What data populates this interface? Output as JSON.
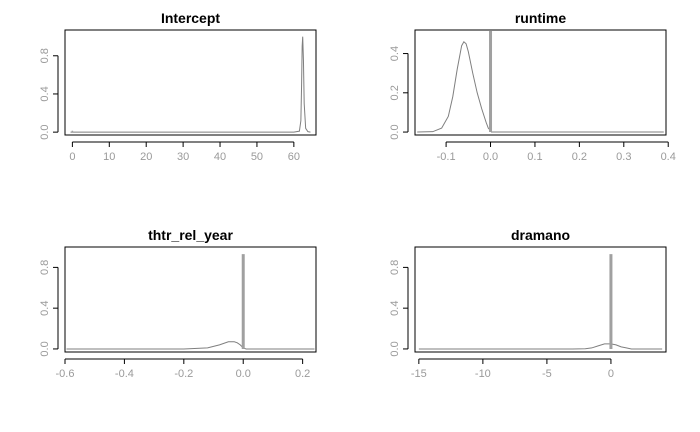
{
  "chart_data": [
    {
      "type": "line",
      "title": "Intercept",
      "xlim": [
        -2,
        66
      ],
      "ylim": [
        -0.03,
        1.07
      ],
      "xticks": [
        0,
        10,
        20,
        30,
        40,
        50,
        60
      ],
      "xtick_labels": [
        "0",
        "10",
        "20",
        "30",
        "40",
        "50",
        "60"
      ],
      "yticks": [
        0.0,
        0.4,
        0.8
      ],
      "ytick_labels": [
        "0.0",
        "0.4",
        "0.8"
      ],
      "spike": {
        "x": 0,
        "height": 0.015
      },
      "curve": {
        "x": [
          -0.5,
          60,
          61.5,
          61.9,
          62.1,
          62.25,
          62.4,
          62.6,
          62.8,
          63.2,
          63.8,
          64.5
        ],
        "y": [
          0,
          0,
          0.01,
          0.12,
          0.5,
          0.9,
          1.0,
          0.75,
          0.3,
          0.04,
          0.005,
          0
        ]
      }
    },
    {
      "type": "line",
      "title": "runtime",
      "xlim": [
        -0.17,
        0.395
      ],
      "ylim": [
        -0.015,
        0.52
      ],
      "xticks": [
        -0.1,
        0.0,
        0.1,
        0.2,
        0.3,
        0.4
      ],
      "xtick_labels": [
        "-0.1",
        "0.0",
        "0.1",
        "0.2",
        "0.3",
        "0.4"
      ],
      "yticks": [
        0.0,
        0.2,
        0.4
      ],
      "ytick_labels": [
        "0.0",
        "0.2",
        "0.4"
      ],
      "spike": {
        "x": 0,
        "height": 0.515
      },
      "curve": {
        "x": [
          -0.165,
          -0.13,
          -0.11,
          -0.095,
          -0.085,
          -0.075,
          -0.065,
          -0.06,
          -0.055,
          -0.05,
          -0.04,
          -0.03,
          -0.02,
          -0.01,
          -0.005,
          0,
          0.002,
          0.05,
          0.2,
          0.39
        ],
        "y": [
          0,
          0.002,
          0.02,
          0.08,
          0.18,
          0.32,
          0.44,
          0.46,
          0.45,
          0.41,
          0.3,
          0.2,
          0.12,
          0.05,
          0.02,
          0.008,
          0,
          0,
          0,
          0
        ]
      }
    },
    {
      "type": "line",
      "title": "thtr_rel_year",
      "xlim": [
        -0.6,
        0.245
      ],
      "ylim": [
        -0.03,
        1.0
      ],
      "xticks": [
        -0.6,
        -0.4,
        -0.2,
        0.0,
        0.2
      ],
      "xtick_labels": [
        "-0.6",
        "-0.4",
        "-0.2",
        "0.0",
        "0.2"
      ],
      "yticks": [
        0.0,
        0.4,
        0.8
      ],
      "ytick_labels": [
        "0.0",
        "0.4",
        "0.8"
      ],
      "spike": {
        "x": 0,
        "height": 0.93
      },
      "curve": {
        "x": [
          -0.595,
          -0.2,
          -0.12,
          -0.08,
          -0.05,
          -0.03,
          -0.02,
          -0.01,
          0,
          0.01,
          0.03,
          0.06,
          0.1,
          0.24
        ],
        "y": [
          0,
          0,
          0.01,
          0.04,
          0.07,
          0.07,
          0.06,
          0.04,
          0.01,
          0,
          0,
          0,
          0,
          0
        ]
      }
    },
    {
      "type": "line",
      "title": "dramano",
      "xlim": [
        -15.3,
        4.3
      ],
      "ylim": [
        -0.03,
        1.0
      ],
      "xticks": [
        -15,
        -10,
        -5,
        0
      ],
      "xtick_labels": [
        "-15",
        "-10",
        "-5",
        "0"
      ],
      "yticks": [
        0.0,
        0.4,
        0.8
      ],
      "ytick_labels": [
        "0.0",
        "0.4",
        "0.8"
      ],
      "spike": {
        "x": 0,
        "height": 0.93
      },
      "curve": {
        "x": [
          -15,
          -3,
          -2,
          -1.5,
          -1,
          -0.5,
          0,
          0.4,
          0.8,
          1.2,
          1.6,
          4
        ],
        "y": [
          0,
          0,
          0.002,
          0.01,
          0.03,
          0.05,
          0.05,
          0.04,
          0.02,
          0.01,
          0,
          0
        ]
      }
    }
  ]
}
